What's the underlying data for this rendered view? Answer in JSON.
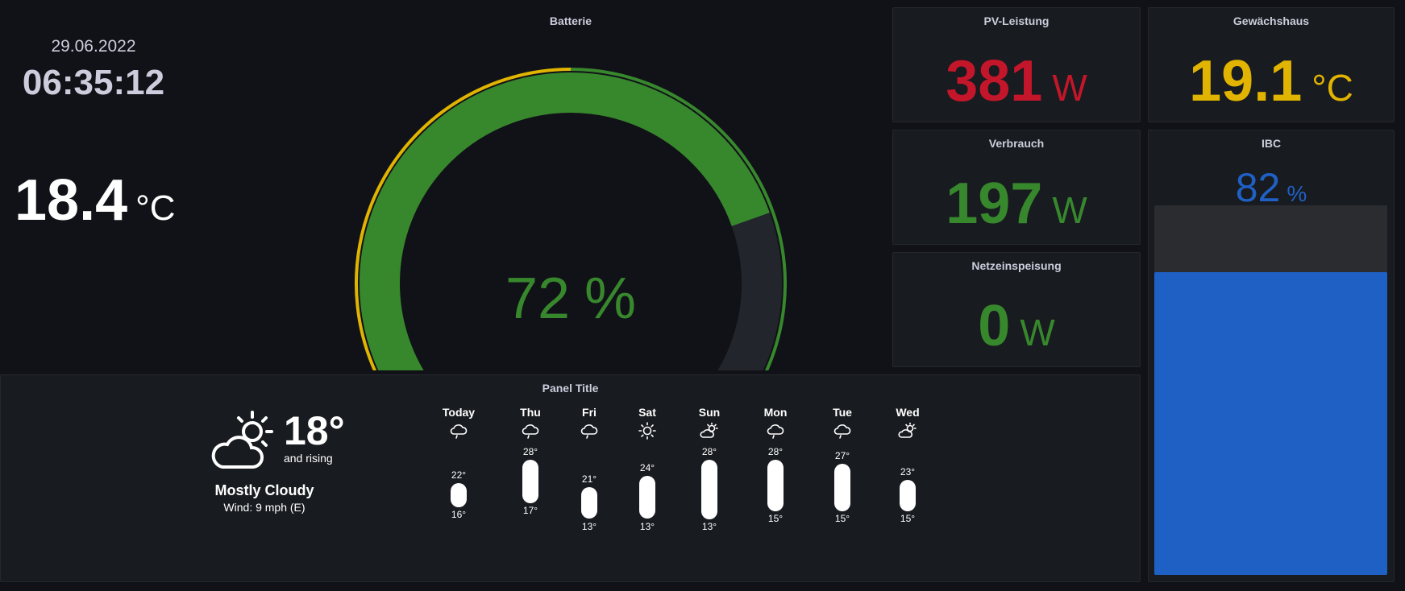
{
  "clock": {
    "date": "29.06.2022",
    "time": "06:35:12"
  },
  "temperature": {
    "value": "18.4",
    "unit": "°C"
  },
  "battery": {
    "title": "Batterie",
    "value": 72,
    "value_text": "72",
    "unit": "%",
    "min": 0,
    "max": 100,
    "thresholds": [
      10,
      50
    ],
    "colors": {
      "low": "#c4162a",
      "mid": "#e0b400",
      "high": "#37872d",
      "track": "#22252b"
    }
  },
  "pv": {
    "title": "PV-Leistung",
    "value": "381",
    "unit": "W",
    "color": "#c4162a"
  },
  "greenhouse": {
    "title": "Gewächshaus",
    "value": "19.1",
    "unit": "°C",
    "color": "#e0b400"
  },
  "consumption": {
    "title": "Verbrauch",
    "value": "197",
    "unit": "W",
    "color": "#37872d"
  },
  "feed_in": {
    "title": "Netzeinspeisung",
    "value": "0",
    "unit": "W",
    "color": "#37872d"
  },
  "ibc": {
    "title": "IBC",
    "value": "82",
    "unit": "%",
    "fraction": 0.82,
    "color": "#1f60c4"
  },
  "weather": {
    "title": "Panel Title",
    "current": {
      "icon": "partly-cloudy-icon",
      "temp": "18°",
      "trend": "and rising",
      "condition": "Mostly Cloudy",
      "wind": "Wind: 9 mph (E)"
    },
    "forecast": [
      {
        "day": "Today",
        "icon": "rain-icon",
        "high": 22,
        "low": 16,
        "high_text": "22°",
        "low_text": "16°"
      },
      {
        "day": "Thu",
        "icon": "rain-icon",
        "high": 28,
        "low": 17,
        "high_text": "28°",
        "low_text": "17°"
      },
      {
        "day": "Fri",
        "icon": "rain-icon",
        "high": 21,
        "low": 13,
        "high_text": "21°",
        "low_text": "13°"
      },
      {
        "day": "Sat",
        "icon": "sun-icon",
        "high": 24,
        "low": 13,
        "high_text": "24°",
        "low_text": "13°"
      },
      {
        "day": "Sun",
        "icon": "partly-cloudy-icon",
        "high": 28,
        "low": 13,
        "high_text": "28°",
        "low_text": "13°"
      },
      {
        "day": "Mon",
        "icon": "rain-icon",
        "high": 28,
        "low": 15,
        "high_text": "28°",
        "low_text": "15°"
      },
      {
        "day": "Tue",
        "icon": "rain-icon",
        "high": 27,
        "low": 15,
        "high_text": "27°",
        "low_text": "15°"
      },
      {
        "day": "Wed",
        "icon": "partly-cloudy-icon",
        "high": 23,
        "low": 15,
        "high_text": "23°",
        "low_text": "15°"
      }
    ]
  }
}
